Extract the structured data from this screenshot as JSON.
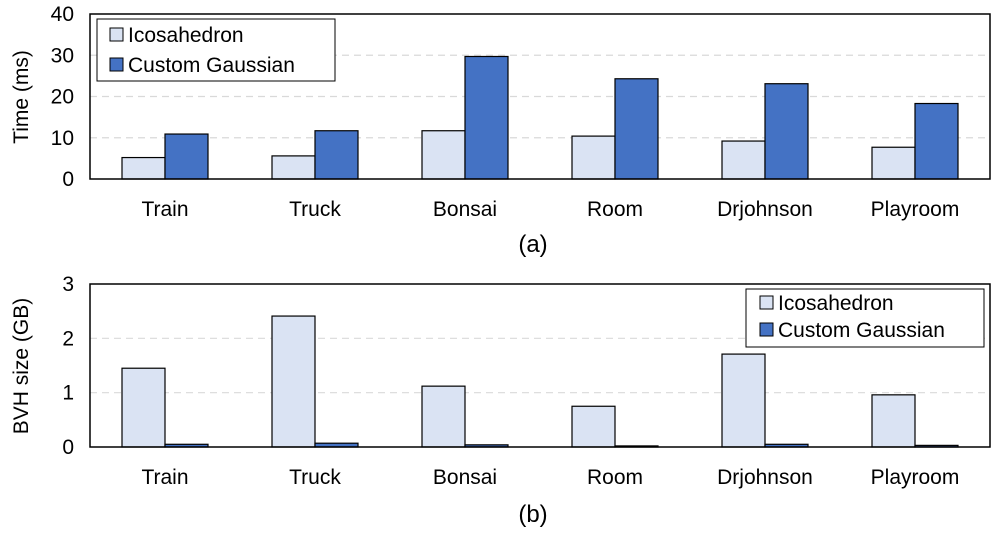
{
  "colors": {
    "icosahedron": "#dae3f3",
    "custom_gaussian": "#4472c4",
    "bar_stroke": "#000000",
    "grid": "#d9d9d9"
  },
  "chart_data": [
    {
      "type": "bar",
      "caption": "(a)",
      "ylabel": "Time (ms)",
      "xlabel": "",
      "ylim": [
        0,
        40
      ],
      "yticks": [
        0,
        10,
        20,
        30,
        40
      ],
      "grid": true,
      "legend_position": "top-left",
      "categories": [
        "Train",
        "Truck",
        "Bonsai",
        "Room",
        "Drjohnson",
        "Playroom"
      ],
      "series": [
        {
          "name": "Icosahedron",
          "values": [
            5.2,
            5.6,
            11.7,
            10.4,
            9.2,
            7.7
          ]
        },
        {
          "name": "Custom Gaussian",
          "values": [
            10.9,
            11.7,
            29.7,
            24.3,
            23.1,
            18.3
          ]
        }
      ]
    },
    {
      "type": "bar",
      "caption": "(b)",
      "ylabel": "BVH size (GB)",
      "xlabel": "",
      "ylim": [
        0,
        3
      ],
      "yticks": [
        0,
        1,
        2,
        3
      ],
      "grid": true,
      "legend_position": "top-right",
      "categories": [
        "Train",
        "Truck",
        "Bonsai",
        "Room",
        "Drjohnson",
        "Playroom"
      ],
      "series": [
        {
          "name": "Icosahedron",
          "values": [
            1.45,
            2.41,
            1.12,
            0.75,
            1.71,
            0.96
          ]
        },
        {
          "name": "Custom Gaussian",
          "values": [
            0.05,
            0.07,
            0.04,
            0.02,
            0.05,
            0.03
          ]
        }
      ]
    }
  ]
}
